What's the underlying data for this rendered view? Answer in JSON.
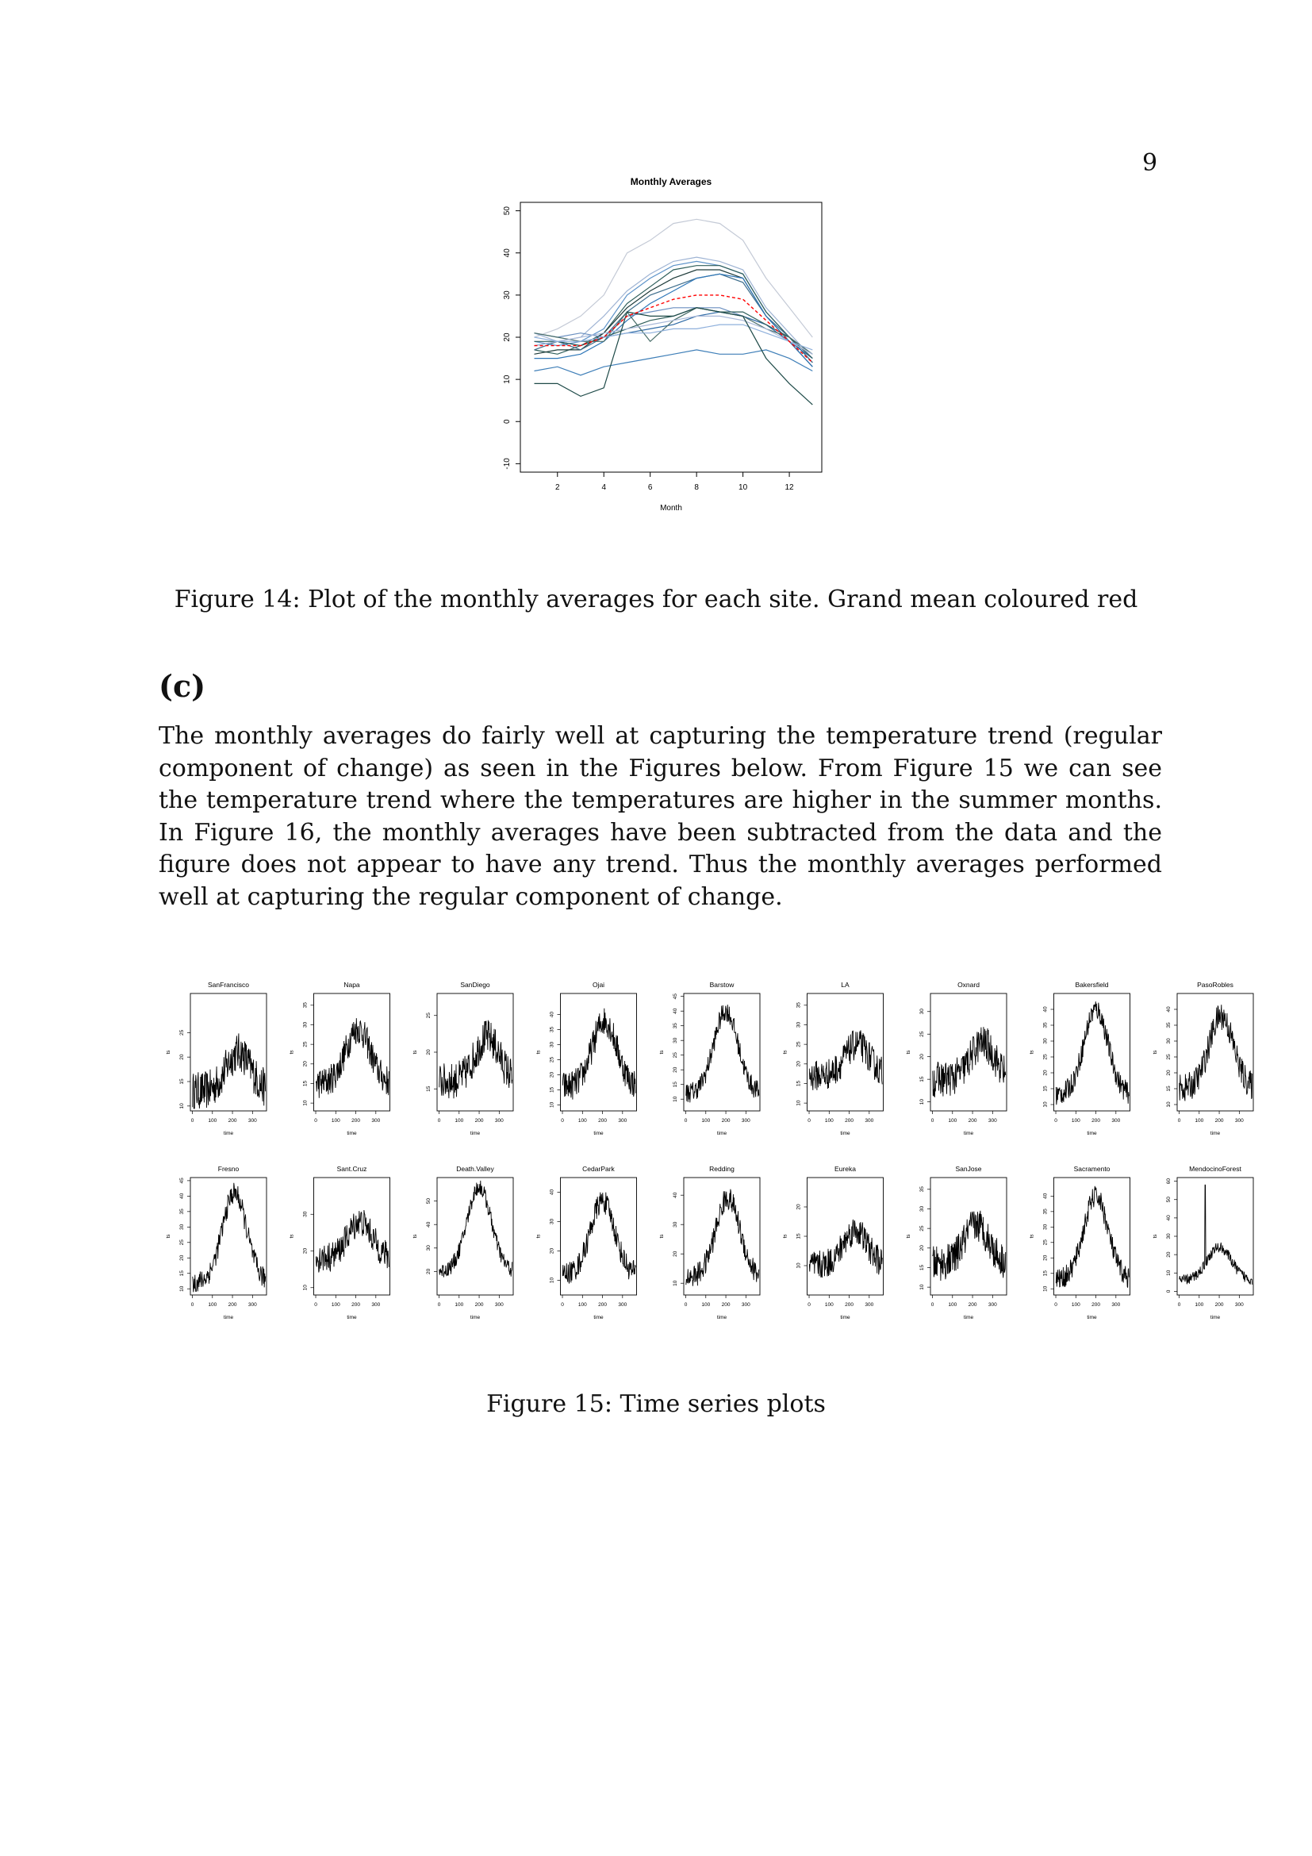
{
  "page_number": "9",
  "figure14": {
    "caption": "Figure 14: Plot of the monthly averages for each site. Grand mean coloured red",
    "chart_data": {
      "type": "line",
      "title": "Monthly Averages",
      "xlabel": "Month",
      "ylabel": "",
      "xlim": [
        0.4,
        13.4
      ],
      "ylim": [
        -12,
        52
      ],
      "xticks": [
        2,
        4,
        6,
        8,
        10,
        12
      ],
      "yticks": [
        -10,
        0,
        10,
        20,
        30,
        40,
        50
      ],
      "x": [
        1,
        2,
        3,
        4,
        5,
        6,
        7,
        8,
        9,
        10,
        11,
        12,
        13
      ],
      "colors": {
        "sites": [
          "#b9c4d8",
          "#7a9cc6",
          "#3f7fb8",
          "#2e5e5a",
          "#1e3b3a"
        ],
        "grand_mean": "#ff0000"
      },
      "series": [
        {
          "values": [
            20,
            22,
            25,
            30,
            40,
            43,
            47,
            48,
            47,
            43,
            34,
            27,
            20
          ],
          "color": "#c4cad6"
        },
        {
          "values": [
            21,
            19,
            20,
            25,
            31,
            35,
            38,
            39,
            38,
            36,
            27,
            21,
            15
          ],
          "color": "#9fb4d4"
        },
        {
          "values": [
            19,
            18,
            19,
            22,
            30,
            34,
            37,
            38,
            37,
            35,
            26,
            20,
            14
          ],
          "color": "#5d93c9"
        },
        {
          "values": [
            17,
            16,
            18,
            21,
            28,
            32,
            36,
            37,
            37,
            35,
            26,
            20,
            14
          ],
          "color": "#2e5e5a"
        },
        {
          "values": [
            16,
            17,
            17,
            21,
            27,
            31,
            34,
            36,
            36,
            34,
            25,
            19,
            13
          ],
          "color": "#1e3b3a"
        },
        {
          "values": [
            17,
            19,
            17,
            20,
            26,
            30,
            32,
            34,
            35,
            33,
            25,
            20,
            14
          ],
          "color": "#3f6e8c"
        },
        {
          "values": [
            15,
            15,
            16,
            19,
            24,
            28,
            31,
            34,
            35,
            34,
            25,
            19,
            13
          ],
          "color": "#2f77b8"
        },
        {
          "values": [
            21,
            20,
            21,
            20,
            25,
            26,
            27,
            27,
            27,
            25,
            23,
            20,
            16
          ],
          "color": "#6a8fc0"
        },
        {
          "values": [
            18,
            19,
            18,
            20,
            21,
            22,
            23,
            25,
            26,
            25,
            23,
            19,
            15
          ],
          "color": "#2e6aa6"
        },
        {
          "values": [
            19,
            19,
            18,
            20,
            22,
            24,
            25,
            27,
            26,
            26,
            23,
            20,
            15
          ],
          "color": "#2e5e5a"
        },
        {
          "values": [
            21,
            20,
            19,
            19,
            26,
            19,
            24,
            27,
            26,
            25,
            22,
            20,
            16
          ],
          "color": "#4a6e6a"
        },
        {
          "values": [
            18,
            19,
            20,
            21,
            22,
            23,
            24,
            25,
            25,
            24,
            22,
            19,
            16
          ],
          "color": "#a8b8d8"
        },
        {
          "values": [
            20,
            19,
            19,
            20,
            21,
            21,
            22,
            22,
            23,
            23,
            21,
            19,
            17
          ],
          "color": "#8fb0dc"
        },
        {
          "values": [
            12,
            13,
            11,
            13,
            14,
            15,
            16,
            17,
            16,
            16,
            17,
            15,
            12
          ],
          "color": "#3f7fb8"
        },
        {
          "values": [
            9,
            9,
            6,
            8,
            26,
            25,
            25,
            27,
            26,
            25,
            15,
            9,
            4
          ],
          "color": "#1e4a48"
        },
        {
          "name": "",
          "values": [
            18,
            18,
            18,
            20,
            25,
            27,
            29,
            30,
            30,
            29,
            24,
            19,
            14
          ],
          "color": "#ff0000",
          "dashed": true
        }
      ]
    }
  },
  "section": {
    "heading": "(c)"
  },
  "paragraph": "The monthly averages do fairly well at capturing the temperature trend (regular component of change) as seen in the Figures below. From Figure 15 we can see the temperature trend where the temperatures are higher in the summer months. In Figure 16, the monthly averages have been subtracted from the data and the figure does not appear to have any trend. Thus the monthly averages performed well at capturing the regular component of change.",
  "figure15": {
    "caption": "Figure 15: Time series plots",
    "chart_data": {
      "type": "line",
      "xlabel": "time",
      "ylabel": "ts",
      "xticks": [
        0,
        100,
        200,
        300
      ],
      "xlim": [
        -10,
        370
      ],
      "panels": [
        {
          "title": "SanFrancisco",
          "ylim": [
            9,
            33
          ],
          "yticks": [
            10,
            15,
            20,
            25
          ],
          "base": 13,
          "amp": 8,
          "noise": 4,
          "peak": 230
        },
        {
          "title": "Napa",
          "ylim": [
            8,
            38
          ],
          "yticks": [
            10,
            15,
            20,
            25,
            30,
            35
          ],
          "base": 15,
          "amp": 14,
          "noise": 4,
          "peak": 210
        },
        {
          "title": "SanDiego",
          "ylim": [
            12,
            28
          ],
          "yticks": [
            15,
            20,
            25
          ],
          "base": 16,
          "amp": 6,
          "noise": 2.5,
          "peak": 240
        },
        {
          "title": "Ojai",
          "ylim": [
            8,
            47
          ],
          "yticks": [
            10,
            15,
            20,
            25,
            30,
            35,
            40
          ],
          "base": 16,
          "amp": 22,
          "noise": 5,
          "peak": 210
        },
        {
          "title": "Barstow",
          "ylim": [
            6,
            46
          ],
          "yticks": [
            10,
            15,
            20,
            25,
            30,
            35,
            40,
            45
          ],
          "base": 12,
          "amp": 28,
          "noise": 3.5,
          "peak": 200
        },
        {
          "title": "LA",
          "ylim": [
            8,
            38
          ],
          "yticks": [
            10,
            15,
            20,
            25,
            30,
            35
          ],
          "base": 17,
          "amp": 8,
          "noise": 4,
          "peak": 240
        },
        {
          "title": "Oxnard",
          "ylim": [
            8,
            34
          ],
          "yticks": [
            10,
            15,
            20,
            25,
            30
          ],
          "base": 15,
          "amp": 8,
          "noise": 4,
          "peak": 250
        },
        {
          "title": "Bakersfield",
          "ylim": [
            8,
            45
          ],
          "yticks": [
            10,
            15,
            20,
            25,
            30,
            35,
            40
          ],
          "base": 13,
          "amp": 27,
          "noise": 3.5,
          "peak": 200
        },
        {
          "title": "PasoRobles",
          "ylim": [
            8,
            45
          ],
          "yticks": [
            10,
            15,
            20,
            25,
            30,
            35,
            40
          ],
          "base": 15,
          "amp": 23,
          "noise": 4.5,
          "peak": 210
        },
        {
          "title": "Fresno",
          "ylim": [
            8,
            46
          ],
          "yticks": [
            10,
            15,
            20,
            25,
            30,
            35,
            40,
            45
          ],
          "base": 12,
          "amp": 29,
          "noise": 3.5,
          "peak": 210
        },
        {
          "title": "Sant.Cruz",
          "ylim": [
            8,
            40
          ],
          "yticks": [
            10,
            20,
            30
          ],
          "base": 18,
          "amp": 10,
          "noise": 4,
          "peak": 220
        },
        {
          "title": "Death.Valley",
          "ylim": [
            10,
            60
          ],
          "yticks": [
            20,
            30,
            40,
            50
          ],
          "base": 20,
          "amp": 36,
          "noise": 3.5,
          "peak": 200
        },
        {
          "title": "CedarPark",
          "ylim": [
            5,
            45
          ],
          "yticks": [
            10,
            20,
            30,
            40
          ],
          "base": 12,
          "amp": 25,
          "noise": 4,
          "peak": 200
        },
        {
          "title": "Redding",
          "ylim": [
            6,
            46
          ],
          "yticks": [
            10,
            20,
            30,
            40
          ],
          "base": 12,
          "amp": 27,
          "noise": 4,
          "peak": 210
        },
        {
          "title": "Eureka",
          "ylim": [
            5,
            25
          ],
          "yticks": [
            10,
            15,
            20
          ],
          "base": 10,
          "amp": 6,
          "noise": 2.5,
          "peak": 230
        },
        {
          "title": "SanJose",
          "ylim": [
            8,
            38
          ],
          "yticks": [
            10,
            15,
            20,
            25,
            30,
            35
          ],
          "base": 16,
          "amp": 10,
          "noise": 4.5,
          "peak": 220
        },
        {
          "title": "Sacramento",
          "ylim": [
            8,
            46
          ],
          "yticks": [
            10,
            15,
            20,
            25,
            30,
            35,
            40
          ],
          "base": 13,
          "amp": 27,
          "noise": 3.5,
          "peak": 200
        },
        {
          "title": "MendocinoForest",
          "ylim": [
            -2,
            62
          ],
          "yticks": [
            0,
            10,
            20,
            30,
            40,
            50,
            60
          ],
          "base": 6,
          "amp": 18,
          "noise": 3,
          "peak": 200,
          "spike": [
            130,
            58
          ]
        }
      ]
    }
  }
}
